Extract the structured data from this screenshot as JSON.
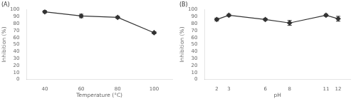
{
  "chart_data": [
    {
      "type": "line",
      "title": "(A)",
      "x": [
        40,
        60,
        80,
        100
      ],
      "values": [
        97,
        91,
        89,
        67
      ],
      "yerr": [
        1.5,
        2.5,
        1.5,
        1.5
      ],
      "xlabel": "Temperature (°C)",
      "ylabel": "Inhibition (%)",
      "xlim": [
        30,
        110
      ],
      "ylim": [
        0,
        100
      ],
      "xticks": [
        40,
        60,
        80,
        100
      ],
      "yticks": [
        0,
        10,
        20,
        30,
        40,
        50,
        60,
        70,
        80,
        90,
        100
      ],
      "color": "#333333",
      "marker": "diamond",
      "grid": false
    },
    {
      "type": "line",
      "title": "(B)",
      "x": [
        2,
        3,
        6,
        8,
        11,
        12
      ],
      "values": [
        86,
        92,
        86,
        81,
        92,
        87
      ],
      "yerr": [
        2.0,
        1.5,
        1.5,
        3.5,
        1.5,
        3.5
      ],
      "xlabel": "pH",
      "ylabel": "Inhibition (%)",
      "xlim": [
        1,
        13
      ],
      "ylim": [
        0,
        100
      ],
      "xticks": [
        2,
        3,
        6,
        8,
        11,
        12
      ],
      "yticks": [
        0,
        10,
        20,
        30,
        40,
        50,
        60,
        70,
        80,
        90,
        100
      ],
      "color": "#333333",
      "marker": "diamond",
      "grid": false
    }
  ]
}
